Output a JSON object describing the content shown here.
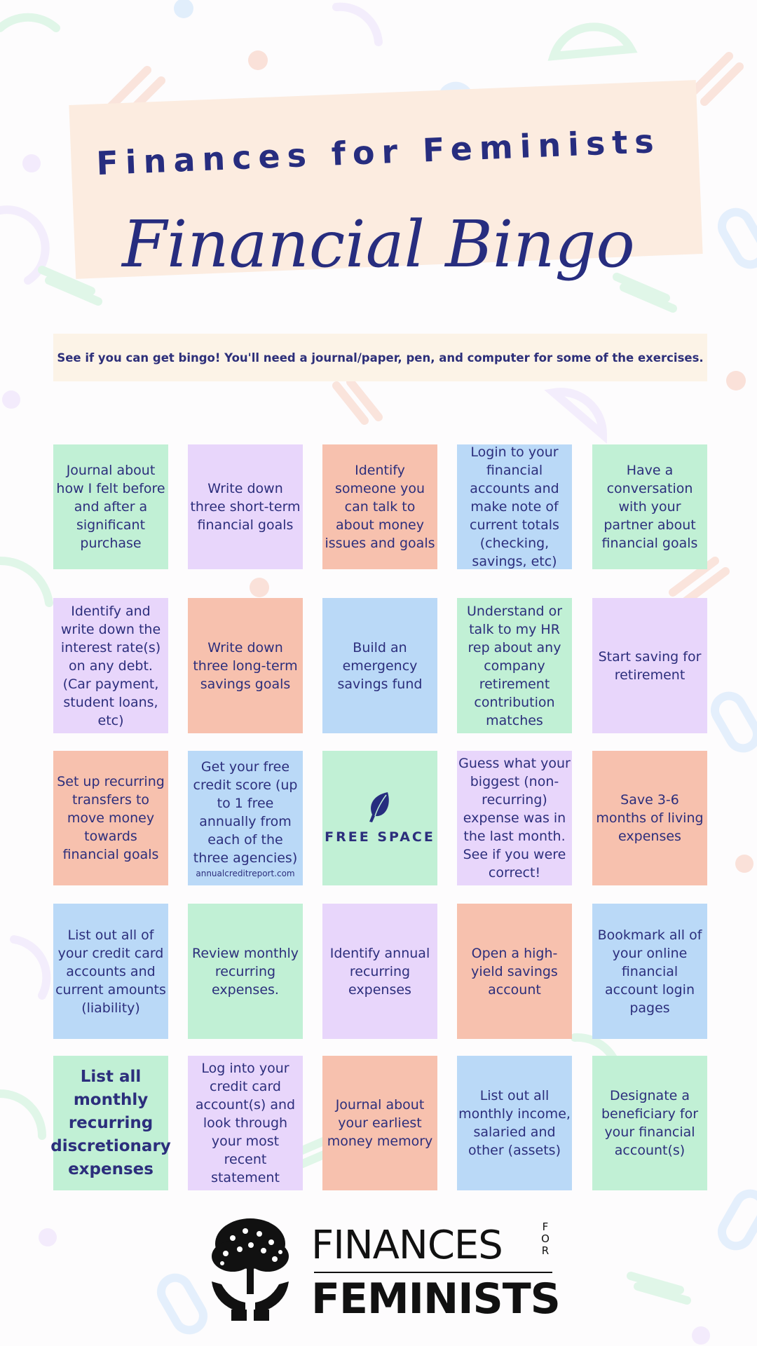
{
  "header": {
    "title": "Finances for Feminists",
    "subtitle": "Financial Bingo"
  },
  "instructions": "See if you can get bingo! You'll need a journal/paper, pen, and computer for some of the exercises.",
  "colors": {
    "navy": "#272d7f",
    "green": "#c1f0d5",
    "purple": "#e8d6fb",
    "salmon": "#f7c1ae",
    "blue": "#bad9f7",
    "cream": "#fcf3e7",
    "peach": "#fcece0"
  },
  "bingo": {
    "rows": [
      [
        {
          "text": "Journal about how I felt before and after a significant purchase",
          "color": "green"
        },
        {
          "text": "Write down three short-term financial goals",
          "color": "purple"
        },
        {
          "text": "Identify someone you can talk to about money issues and goals",
          "color": "salmon"
        },
        {
          "text": "Login to your financial accounts and make note of current totals (checking, savings, etc)",
          "color": "blue"
        },
        {
          "text": "Have a conversation with your partner about financial goals",
          "color": "green"
        }
      ],
      [
        {
          "text": "Identify and write down the interest rate(s) on any debt. (Car payment, student loans, etc)",
          "color": "purple"
        },
        {
          "text": "Write down three long-term savings goals",
          "color": "salmon"
        },
        {
          "text": "Build an emergency savings fund",
          "color": "blue"
        },
        {
          "text": "Understand or talk to my HR rep about any company retirement contribution matches",
          "color": "green"
        },
        {
          "text": "Start saving for retirement",
          "color": "purple"
        }
      ],
      [
        {
          "text": "Set up recurring transfers to move money towards financial goals",
          "color": "salmon"
        },
        {
          "text": "Get your free credit score (up to 1 free annually from each of the three agencies)",
          "sub": "annualcreditreport.com",
          "color": "blue"
        },
        {
          "text": "FREE SPACE",
          "color": "green",
          "free": true
        },
        {
          "text": "Guess what your biggest (non-recurring) expense was in the last month. See if you were correct!",
          "color": "purple"
        },
        {
          "text": "Save 3-6 months of living expenses",
          "color": "salmon"
        }
      ],
      [
        {
          "text": "List out all of your credit card accounts and current amounts (liability)",
          "color": "blue"
        },
        {
          "text": "Review monthly recurring expenses.",
          "color": "green"
        },
        {
          "text": "Identify annual recurring expenses",
          "color": "purple"
        },
        {
          "text": "Open a high-yield savings account",
          "color": "salmon"
        },
        {
          "text": "Bookmark all of your online financial account login pages",
          "color": "blue"
        }
      ],
      [
        {
          "text": "List all monthly recurring discretionary expenses",
          "color": "green",
          "big": true
        },
        {
          "text": "Log into your credit card account(s) and look through your most recent statement",
          "color": "purple"
        },
        {
          "text": "Journal about your earliest money memory",
          "color": "salmon"
        },
        {
          "text": "List out all monthly income, salaried and other (assets)",
          "color": "blue"
        },
        {
          "text": "Designate a beneficiary for your financial account(s)",
          "color": "green"
        }
      ]
    ]
  },
  "logo": {
    "top": "FINANCES",
    "for": "FOR",
    "bottom": "FEMINISTS",
    "icon": "tree-in-hands-icon"
  }
}
